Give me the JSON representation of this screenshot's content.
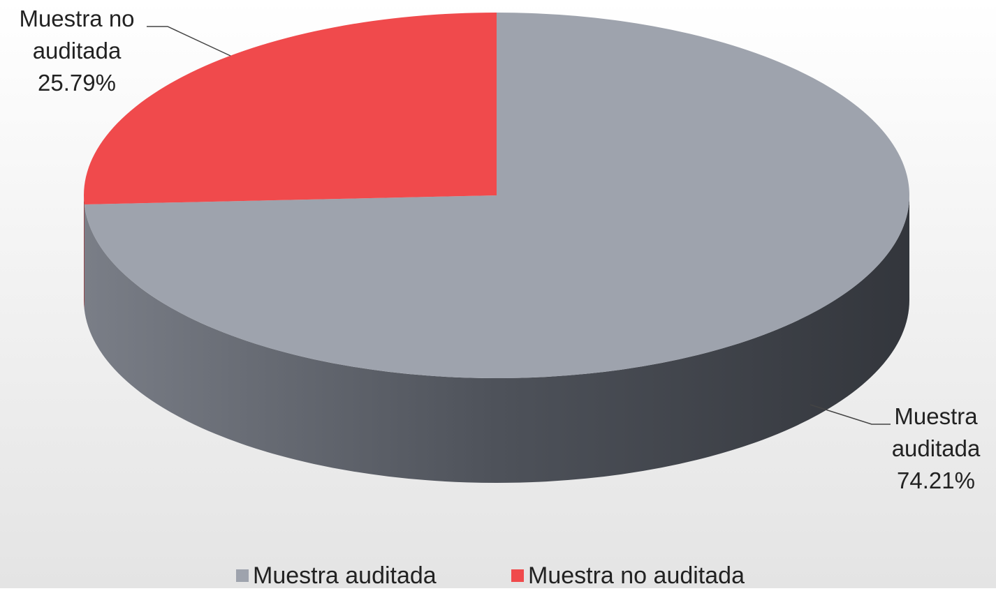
{
  "chart_data": {
    "type": "pie",
    "categories": [
      "Muestra auditada",
      "Muestra no auditada"
    ],
    "values": [
      74.21,
      25.79
    ],
    "value_labels": [
      "74.21%",
      "25.79%"
    ],
    "colors": [
      "#9ea3ad",
      "#f04a4c"
    ],
    "legend": "bottom"
  }
}
